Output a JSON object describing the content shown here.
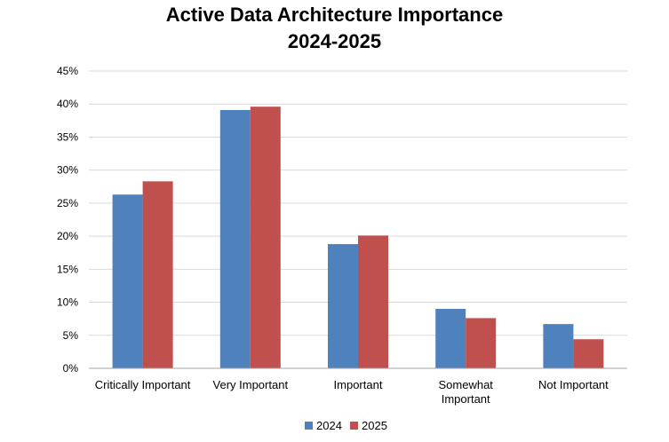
{
  "chart_data": {
    "type": "bar",
    "title_line1": "Active Data Architecture Importance",
    "title_line2": "2024-2025",
    "xlabel": "",
    "ylabel": "",
    "categories": [
      [
        "Critically Important"
      ],
      [
        "Very Important"
      ],
      [
        "Important"
      ],
      [
        "Somewhat",
        "Important"
      ],
      [
        "Not Important"
      ]
    ],
    "series": [
      {
        "name": "2024",
        "color": "#4F81BD",
        "values": [
          26.3,
          39.1,
          18.8,
          9.0,
          6.7
        ]
      },
      {
        "name": "2025",
        "color": "#C0504D",
        "values": [
          28.3,
          39.6,
          20.1,
          7.6,
          4.4
        ]
      }
    ],
    "ylim": [
      0,
      45
    ],
    "yticks": [
      0,
      5,
      10,
      15,
      20,
      25,
      30,
      35,
      40,
      45
    ],
    "ytick_suffix": "%",
    "grid": true,
    "legend_position": "bottom"
  }
}
